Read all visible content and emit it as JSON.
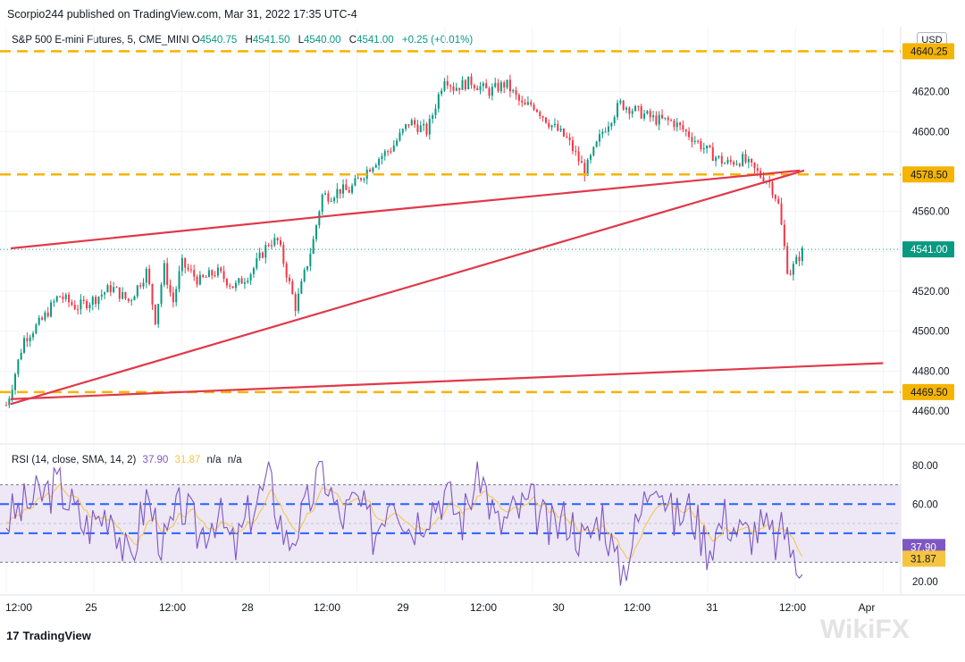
{
  "header": {
    "publish_line": "Scorpio244 published on TradingView.com, Mar 31, 2022 17:35 UTC-4"
  },
  "legend": {
    "symbol": "S&P 500 E-mini Futures, 5, CME_MINI",
    "o_label": "O",
    "o_value": "4540.75",
    "h_label": "H",
    "h_value": "4541.50",
    "l_label": "L",
    "l_value": "4540.00",
    "c_label": "C",
    "c_value": "4541.00",
    "change": "+0.25 (+0.01%)"
  },
  "currency": "USD",
  "rsi_legend": {
    "label": "RSI (14, close, SMA, 14, 2)",
    "rsi_value": "37.90",
    "sma_value": "31.87",
    "na1": "n/a",
    "na2": "n/a"
  },
  "footer": {
    "brand": "TradingView",
    "watermark": "WikiFX"
  },
  "colors": {
    "up": "#089981",
    "down": "#f23645",
    "trendline": "#e0394a",
    "level": "#f5b400",
    "rsi": "#7e57c2",
    "rsi_sma": "#f5c542",
    "rsi_band": "#ede7f6",
    "rsi_mid": "#2962ff"
  },
  "chart_data": [
    {
      "type": "candlestick",
      "title": "S&P 500 E-mini Futures, 5, CME_MINI",
      "ylim": [
        4452,
        4648
      ],
      "y_ticks": [
        "4620.00",
        "4600.00",
        "4580.00",
        "4560.00",
        "4540.00",
        "4520.00",
        "4500.00",
        "4480.00",
        "4460.00"
      ],
      "x_ticks": [
        "12:00",
        "25",
        "12:00",
        "28",
        "12:00",
        "29",
        "12:00",
        "30",
        "12:00",
        "31",
        "12:00",
        "Apr"
      ],
      "price_path": {
        "t": [
          0,
          0.5,
          2,
          4,
          6,
          8,
          10,
          12,
          14,
          16,
          17,
          18,
          19,
          20,
          22,
          24,
          26,
          28,
          30,
          31,
          33,
          35,
          36,
          37,
          38,
          39,
          40,
          42,
          44,
          46,
          48,
          50,
          51,
          53,
          55,
          57,
          58,
          59,
          60,
          62,
          64,
          66,
          68,
          70,
          72,
          74,
          76,
          78,
          80,
          82,
          84,
          86,
          87,
          88,
          88.8,
          89.2,
          90.5,
          91
        ],
        "close": [
          4463,
          4470,
          4496,
          4505,
          4518,
          4512,
          4516,
          4522,
          4515,
          4530,
          4506,
          4532,
          4514,
          4534,
          4525,
          4530,
          4522,
          4530,
          4545,
          4545,
          4512,
          4545,
          4568,
          4568,
          4571,
          4570,
          4575,
          4585,
          4592,
          4605,
          4600,
          4628,
          4622,
          4625,
          4620,
          4624,
          4618,
          4612,
          4614,
          4604,
          4596,
          4580,
          4600,
          4614,
          4610,
          4606,
          4605,
          4598,
          4590,
          4584,
          4586,
          4578,
          4575,
          4565,
          4540,
          4528,
          4538,
          4541
        ]
      },
      "last_price": "4541.00",
      "series": [
        {
          "name": "",
          "type": "trendline",
          "points": [
            [
              0.5,
              4541.5
            ],
            [
              38.5,
              4558.5
            ],
            [
              90.5,
              4580.5
            ]
          ]
        },
        {
          "name": "",
          "type": "trendline",
          "points": [
            [
              0.5,
              4463.5
            ],
            [
              91,
              4580.5
            ]
          ]
        },
        {
          "name": "",
          "type": "trendline",
          "points": [
            [
              0.5,
              4466.0
            ],
            [
              100,
              4484.0
            ]
          ]
        }
      ],
      "levels": [
        {
          "value": "4640.25",
          "display": "4640.25"
        },
        {
          "value": "4578.50",
          "display": "4578.50"
        },
        {
          "value": "4469.50",
          "display": "4469.50"
        }
      ]
    },
    {
      "type": "line",
      "title": "RSI (14, close, SMA, 14, 2)",
      "ylim": [
        15,
        85
      ],
      "y_ticks": [
        "80.00",
        "60.00",
        "20.00"
      ],
      "bands": {
        "upper": 70,
        "middle": 50,
        "lower": 30
      },
      "mid_dashed": [
        60,
        45
      ],
      "rsi_path": {
        "t": [
          0,
          3,
          6,
          9,
          12,
          14,
          16,
          18,
          20,
          22,
          24,
          26,
          28,
          30,
          32,
          34,
          36,
          38,
          40,
          42,
          44,
          46,
          48,
          50,
          52,
          54,
          56,
          58,
          60,
          62,
          64,
          66,
          68,
          70,
          72,
          74,
          76,
          78,
          80,
          82,
          84,
          86,
          88,
          89,
          90,
          91
        ],
        "values": [
          52,
          62,
          70,
          48,
          58,
          28,
          64,
          38,
          60,
          44,
          56,
          36,
          58,
          72,
          40,
          54,
          80,
          52,
          62,
          44,
          70,
          48,
          58,
          66,
          52,
          78,
          48,
          56,
          60,
          46,
          54,
          40,
          56,
          22,
          50,
          80,
          52,
          58,
          38,
          54,
          44,
          48,
          40,
          50,
          22,
          37.9
        ]
      },
      "rsi_value": "37.90",
      "sma_value": "31.87"
    }
  ]
}
